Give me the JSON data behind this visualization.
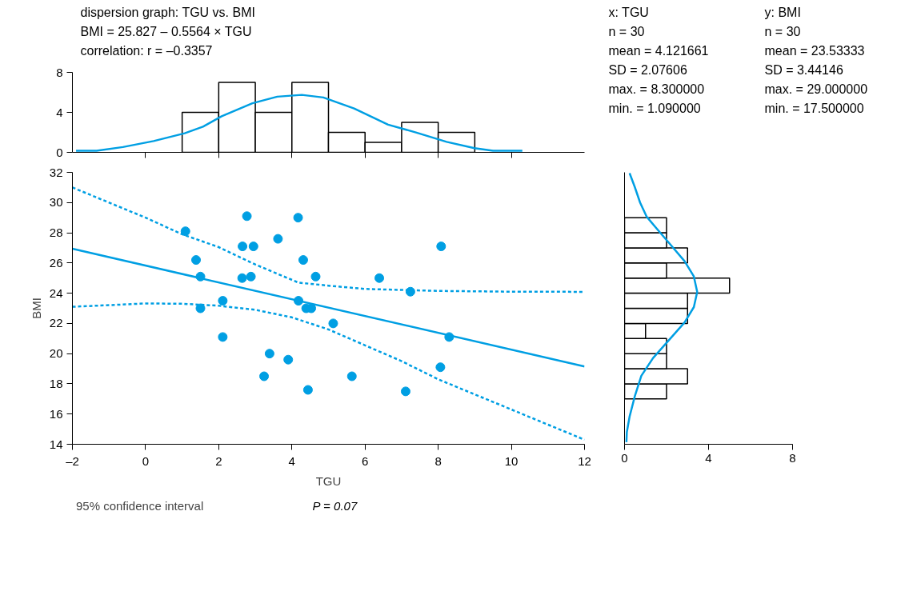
{
  "chart_data": [
    {
      "type": "other",
      "title": "dispersion graph: TGU vs. BMI",
      "annotations": [
        "BMI = 25.827 – 0.5564 × TGU",
        "correlation: r = –0.3357"
      ]
    },
    {
      "type": "scatter",
      "annotations": [
        "P = 0.07"
      ],
      "xlabel": "TGU",
      "ylabel": "BMI",
      "xlim": [
        -2,
        12
      ],
      "ylim": [
        14,
        32
      ],
      "xticks": [
        {
          "value": -2,
          "label": "–2"
        },
        0,
        2,
        4,
        6,
        8,
        10,
        12
      ],
      "yticks": [
        14,
        16,
        18,
        20,
        22,
        24,
        26,
        28,
        30,
        32
      ],
      "grid": false,
      "legend": "bottom",
      "series": [
        {
          "type": "scatter",
          "marker": "circle",
          "color": "#009fe3",
          "x": [
            1.09,
            2.77,
            4.17,
            1.38,
            1.5,
            1.5,
            2.11,
            2.11,
            2.65,
            2.95,
            2.64,
            2.88,
            3.62,
            4.31,
            4.65,
            4.18,
            4.39,
            4.53,
            5.13,
            3.39,
            3.9,
            3.24,
            4.44,
            5.64,
            7.11,
            6.39,
            7.24,
            8.08,
            8.3,
            8.06
          ],
          "values": [
            28.1,
            29.1,
            29.0,
            26.2,
            25.1,
            23.0,
            23.5,
            21.1,
            27.1,
            27.1,
            25.0,
            25.1,
            27.6,
            26.2,
            25.1,
            23.5,
            23.0,
            23.0,
            22.0,
            20.0,
            19.6,
            18.5,
            17.6,
            18.5,
            17.5,
            25.0,
            24.1,
            27.1,
            21.1,
            19.1
          ]
        },
        {
          "type": "line",
          "color": "#009fe3",
          "x": [
            -2,
            12
          ],
          "values": [
            26.94,
            19.15
          ]
        },
        {
          "type": "line",
          "name": "95% confidence interval",
          "color": "#009fe3",
          "line_style": "dashed",
          "x": [
            -2,
            0,
            1,
            2,
            3,
            4.18,
            5,
            6,
            8,
            10,
            12
          ],
          "values": [
            31.0,
            29.0,
            27.9,
            27.05,
            25.9,
            24.7,
            24.5,
            24.28,
            24.15,
            24.1,
            24.09
          ]
        },
        {
          "type": "line",
          "color": "#009fe3",
          "line_style": "dashed",
          "x": [
            -2,
            0,
            1,
            2,
            3,
            4,
            5,
            6,
            7,
            8,
            10,
            12
          ],
          "values": [
            23.1,
            23.32,
            23.3,
            23.17,
            22.9,
            22.4,
            21.6,
            20.55,
            19.5,
            18.3,
            16.3,
            14.3
          ]
        }
      ]
    },
    {
      "type": "other",
      "title": "x: TGU",
      "annotations": [
        "n = 30",
        "mean = 4.121661",
        "SD = 2.07606",
        "max. = 8.300000",
        "min. = 1.090000"
      ]
    },
    {
      "type": "other",
      "title": "y: BMI",
      "annotations": [
        "n = 30",
        "mean = 23.53333",
        "SD = 3.44146",
        "max. = 29.000000",
        "min. = 17.500000"
      ]
    },
    {
      "type": "histogram",
      "xlim": [
        -2,
        12
      ],
      "ylim": [
        0,
        8
      ],
      "xticks": [
        {
          "value": 0,
          "label": null
        },
        {
          "value": 2,
          "label": null
        },
        {
          "value": 4,
          "label": null
        },
        {
          "value": 6,
          "label": null
        },
        {
          "value": 8,
          "label": null
        },
        {
          "value": 10,
          "label": null
        }
      ],
      "yticks": [
        0,
        4,
        8
      ],
      "tick_labels": "y",
      "grid": false,
      "series": [
        {
          "type": "histogram",
          "color": "#ffffff",
          "bins": [
            1,
            2,
            3,
            4,
            5,
            6,
            7,
            8,
            9
          ],
          "values": [
            4,
            7,
            4,
            7,
            2,
            1,
            3,
            2
          ]
        },
        {
          "type": "line",
          "color": "#009fe3",
          "x": [
            -1.9,
            -1.34,
            -0.62,
            0.22,
            1.07,
            1.57,
            2.08,
            2.92,
            3.6,
            4.27,
            4.86,
            5.7,
            6.63,
            7.39,
            8.23,
            8.99,
            9.5,
            10.3
          ],
          "values": [
            0.16,
            0.16,
            0.53,
            1.13,
            1.91,
            2.57,
            3.61,
            4.91,
            5.57,
            5.75,
            5.49,
            4.39,
            2.77,
            1.99,
            1.05,
            0.42,
            0.16,
            0.16
          ]
        }
      ]
    },
    {
      "type": "histogram",
      "orientation": "horizontal",
      "xlim": [
        0,
        8
      ],
      "ylim": [
        14,
        32
      ],
      "xticks": [
        0,
        4,
        8
      ],
      "tick_labels": "x",
      "grid": false,
      "series": [
        {
          "type": "histogram",
          "color": "#ffffff",
          "bins": [
            17,
            18,
            19,
            20,
            21,
            22,
            23,
            24,
            25,
            26,
            27,
            28,
            29
          ],
          "values": [
            2,
            3,
            2,
            2,
            1,
            3,
            3,
            5,
            2,
            3,
            2,
            2
          ]
        },
        {
          "type": "line",
          "color": "#009fe3",
          "x": [
            31.95,
            31.02,
            30.0,
            29.07,
            28.15,
            27.13,
            26.12,
            25.11,
            24.09,
            23.08,
            22.07,
            20.89,
            19.71,
            18.53,
            17.18,
            15.83,
            14.81,
            14.14
          ],
          "values": [
            0.24,
            0.49,
            0.74,
            1.05,
            1.61,
            2.24,
            2.86,
            3.3,
            3.46,
            3.3,
            2.86,
            2.11,
            1.36,
            0.8,
            0.49,
            0.24,
            0.11,
            0.09
          ]
        }
      ]
    }
  ]
}
